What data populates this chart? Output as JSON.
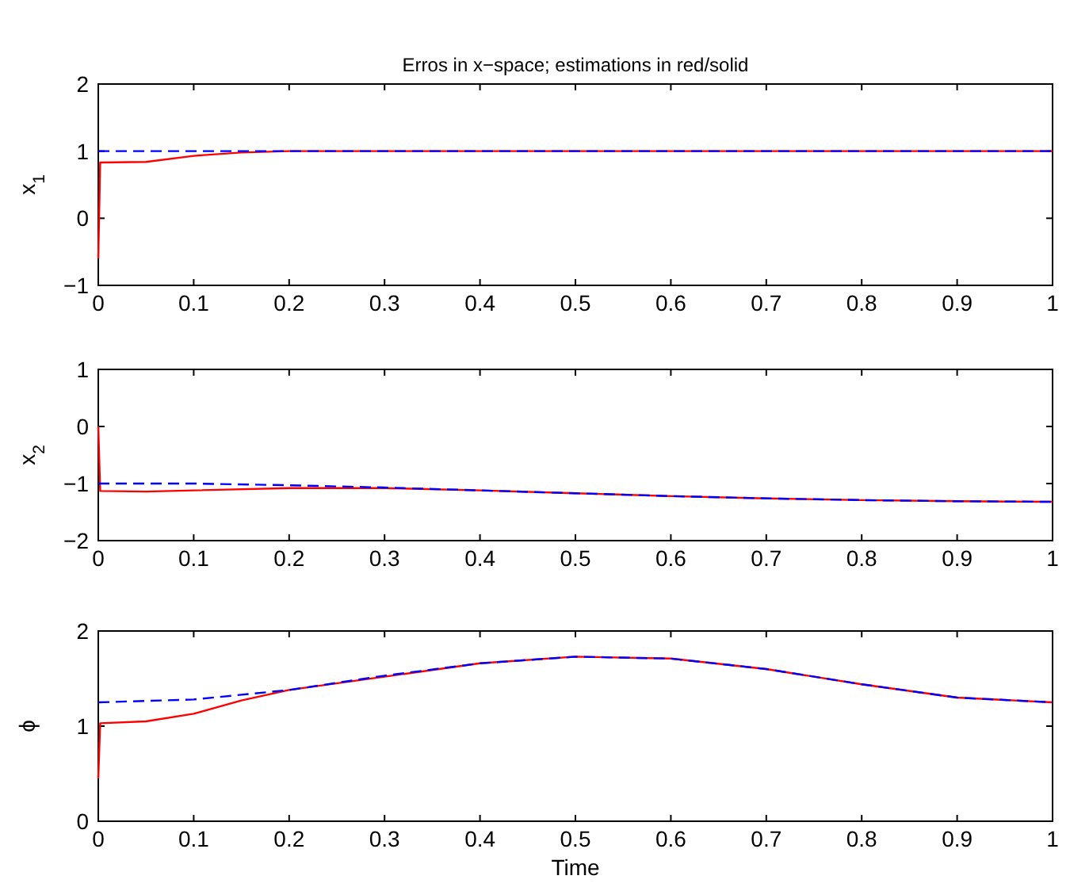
{
  "chart_data": [
    {
      "type": "line",
      "title": "Erros in x−space; estimations in red/solid",
      "ylabel": "x$_{1}$",
      "xlim": [
        0,
        1
      ],
      "ylim": [
        -1,
        2
      ],
      "xticks": [
        0,
        0.1,
        0.2,
        0.3,
        0.4,
        0.5,
        0.6,
        0.7,
        0.8,
        0.9,
        1
      ],
      "yticks": [
        -1,
        0,
        1,
        2
      ],
      "grid": false,
      "series": [
        {
          "color": "#0000ff",
          "line_style": "dashed",
          "x": [
            0,
            0.1,
            0.2,
            0.3,
            0.4,
            0.5,
            0.6,
            0.7,
            0.8,
            0.9,
            1
          ],
          "values": [
            1,
            1,
            1,
            1,
            1,
            1,
            1,
            1,
            1,
            1,
            1
          ]
        },
        {
          "color": "#ff0000",
          "line_style": "solid",
          "x": [
            0,
            0.002,
            0.05,
            0.1,
            0.15,
            0.2,
            0.3,
            0.4,
            0.5,
            0.6,
            0.7,
            0.8,
            0.9,
            1
          ],
          "values": [
            -0.6,
            0.83,
            0.84,
            0.93,
            0.98,
            1,
            1,
            1,
            1,
            1,
            1,
            1,
            1,
            1
          ]
        }
      ]
    },
    {
      "type": "line",
      "ylabel": "x$_{2}$",
      "xlim": [
        0,
        1
      ],
      "ylim": [
        -2,
        1
      ],
      "xticks": [
        0,
        0.1,
        0.2,
        0.3,
        0.4,
        0.5,
        0.6,
        0.7,
        0.8,
        0.9,
        1
      ],
      "yticks": [
        -2,
        -1,
        0,
        1
      ],
      "grid": false,
      "series": [
        {
          "color": "#0000ff",
          "line_style": "dashed",
          "x": [
            0,
            0.1,
            0.2,
            0.3,
            0.4,
            0.5,
            0.6,
            0.7,
            0.8,
            0.9,
            1
          ],
          "values": [
            -1,
            -1,
            -1.03,
            -1.07,
            -1.12,
            -1.17,
            -1.22,
            -1.26,
            -1.29,
            -1.31,
            -1.32
          ]
        },
        {
          "color": "#ff0000",
          "line_style": "solid",
          "x": [
            0,
            0.002,
            0.05,
            0.1,
            0.2,
            0.3,
            0.4,
            0.5,
            0.6,
            0.7,
            0.8,
            0.9,
            1
          ],
          "values": [
            0,
            -1.13,
            -1.14,
            -1.12,
            -1.08,
            -1.08,
            -1.12,
            -1.17,
            -1.22,
            -1.26,
            -1.29,
            -1.31,
            -1.32
          ]
        }
      ]
    },
    {
      "type": "line",
      "ylabel": "ϕ",
      "xlabel": "Time",
      "xlim": [
        0,
        1
      ],
      "ylim": [
        0,
        2
      ],
      "xticks": [
        0,
        0.1,
        0.2,
        0.3,
        0.4,
        0.5,
        0.6,
        0.7,
        0.8,
        0.9,
        1
      ],
      "yticks": [
        0,
        1,
        2
      ],
      "grid": false,
      "series": [
        {
          "color": "#0000ff",
          "line_style": "dashed",
          "x": [
            0,
            0.1,
            0.2,
            0.3,
            0.4,
            0.5,
            0.6,
            0.7,
            0.8,
            0.9,
            1
          ],
          "values": [
            1.25,
            1.28,
            1.38,
            1.53,
            1.66,
            1.73,
            1.71,
            1.6,
            1.44,
            1.3,
            1.25
          ]
        },
        {
          "color": "#ff0000",
          "line_style": "solid",
          "x": [
            0,
            0.002,
            0.05,
            0.1,
            0.15,
            0.2,
            0.3,
            0.4,
            0.5,
            0.6,
            0.7,
            0.8,
            0.9,
            1
          ],
          "values": [
            0.45,
            1.03,
            1.05,
            1.13,
            1.27,
            1.38,
            1.52,
            1.66,
            1.73,
            1.71,
            1.6,
            1.44,
            1.3,
            1.25
          ]
        }
      ]
    }
  ]
}
